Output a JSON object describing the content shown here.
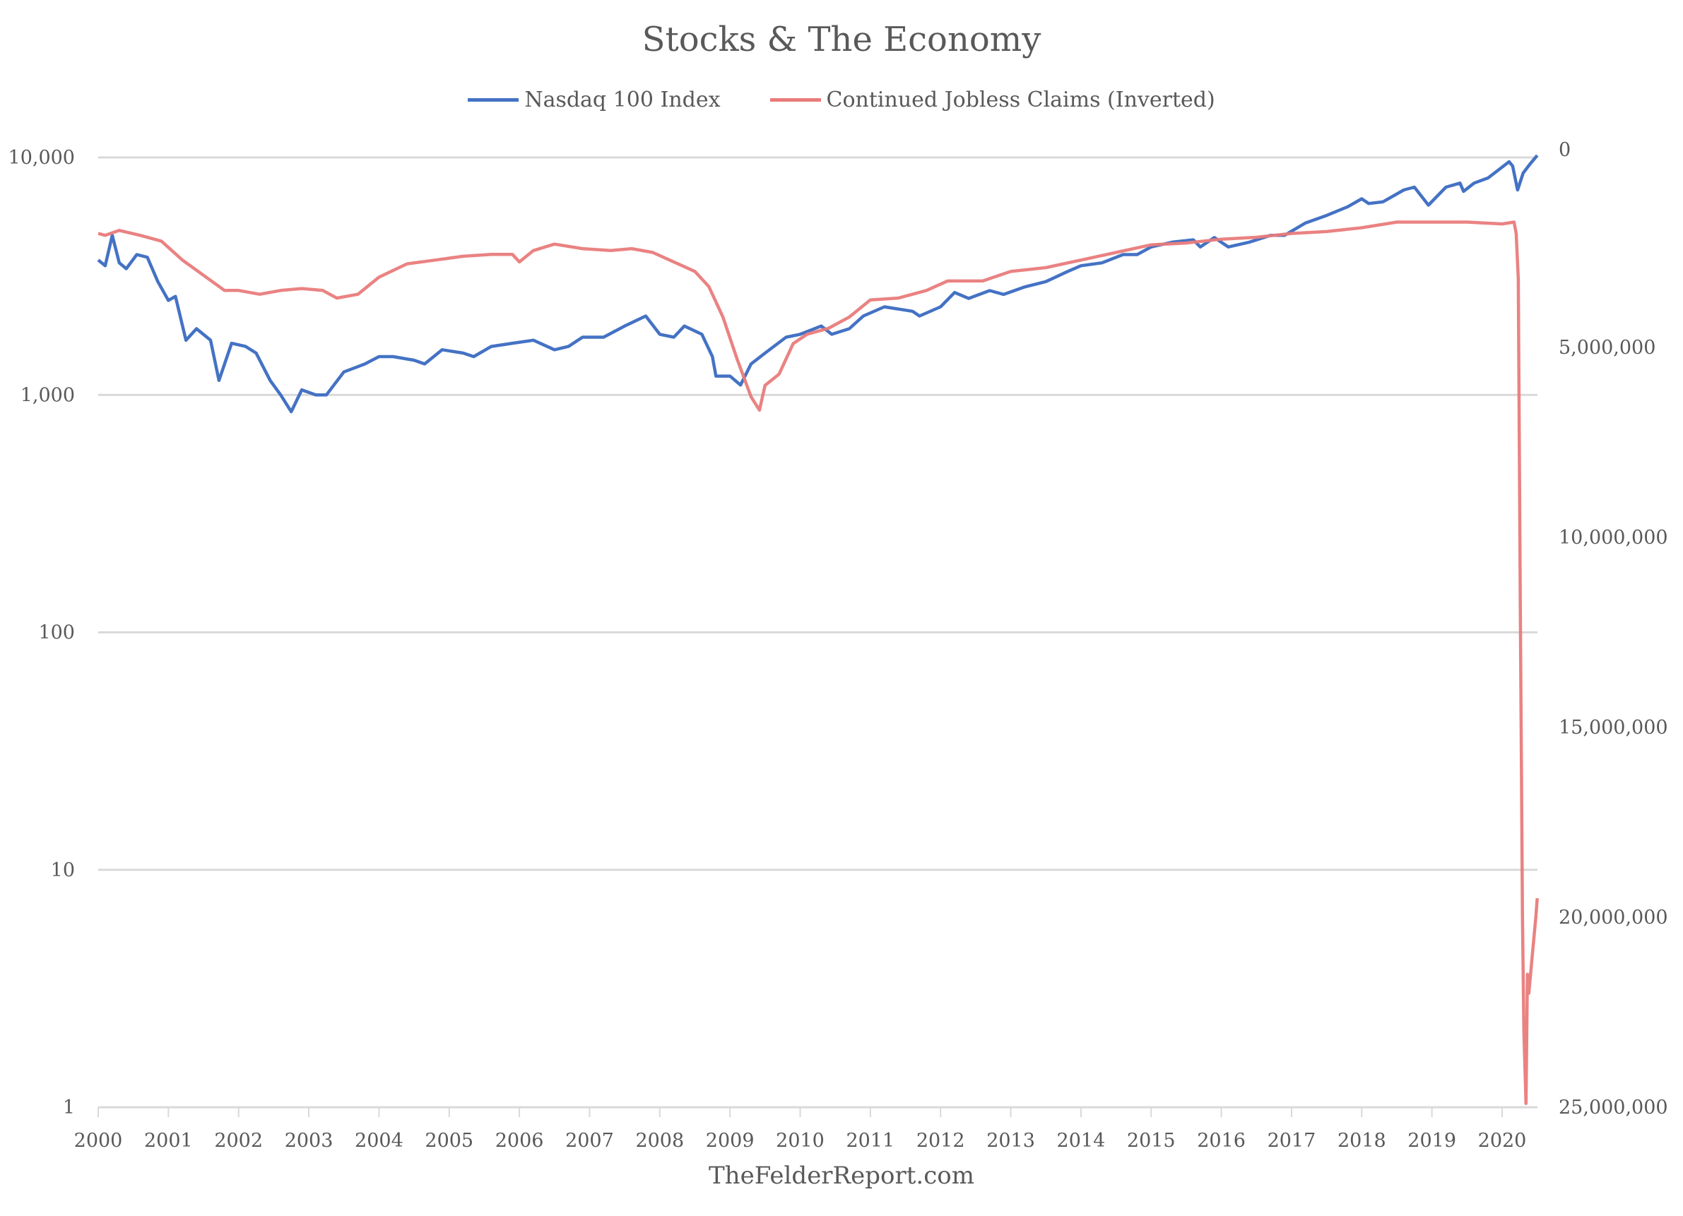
{
  "chart_data": {
    "type": "line",
    "title": "Stocks & The Economy",
    "footer": "TheFelderReport.com",
    "legend_position": "top",
    "grid": true,
    "x_ticks": [
      "2000",
      "2001",
      "2002",
      "2003",
      "2004",
      "2005",
      "2006",
      "2007",
      "2008",
      "2009",
      "2010",
      "2011",
      "2012",
      "2013",
      "2014",
      "2015",
      "2016",
      "2017",
      "2018",
      "2019",
      "2020"
    ],
    "xlim": [
      2000,
      2020.5
    ],
    "y_left": {
      "scale": "log",
      "range": [
        1,
        10000
      ],
      "ticks": [
        1,
        10,
        100,
        1000,
        10000
      ],
      "tick_labels": [
        "1",
        "10",
        "100",
        "1,000",
        "10,000"
      ]
    },
    "y_right": {
      "scale": "linear",
      "inverted": true,
      "range": [
        0,
        25000000
      ],
      "ticks": [
        0,
        5000000,
        10000000,
        15000000,
        20000000,
        25000000
      ],
      "tick_labels": [
        "0",
        "5,000,000",
        "10,000,000",
        "15,000,000",
        "20,000,000",
        "25,000,000"
      ]
    },
    "series": [
      {
        "name": "Nasdaq 100 Index",
        "axis": "left",
        "color": "#4472C4",
        "points": [
          [
            2000.0,
            3700
          ],
          [
            2000.1,
            3500
          ],
          [
            2000.2,
            4700
          ],
          [
            2000.3,
            3600
          ],
          [
            2000.4,
            3400
          ],
          [
            2000.55,
            3900
          ],
          [
            2000.7,
            3800
          ],
          [
            2000.85,
            3000
          ],
          [
            2001.0,
            2500
          ],
          [
            2001.1,
            2600
          ],
          [
            2001.25,
            1700
          ],
          [
            2001.4,
            1900
          ],
          [
            2001.6,
            1700
          ],
          [
            2001.72,
            1150
          ],
          [
            2001.9,
            1650
          ],
          [
            2002.1,
            1600
          ],
          [
            2002.25,
            1500
          ],
          [
            2002.45,
            1150
          ],
          [
            2002.6,
            1000
          ],
          [
            2002.75,
            850
          ],
          [
            2002.9,
            1050
          ],
          [
            2003.1,
            1000
          ],
          [
            2003.25,
            1000
          ],
          [
            2003.5,
            1250
          ],
          [
            2003.8,
            1350
          ],
          [
            2004.0,
            1450
          ],
          [
            2004.2,
            1450
          ],
          [
            2004.5,
            1400
          ],
          [
            2004.65,
            1350
          ],
          [
            2004.9,
            1550
          ],
          [
            2005.2,
            1500
          ],
          [
            2005.35,
            1450
          ],
          [
            2005.6,
            1600
          ],
          [
            2005.9,
            1650
          ],
          [
            2006.2,
            1700
          ],
          [
            2006.5,
            1550
          ],
          [
            2006.7,
            1600
          ],
          [
            2006.9,
            1750
          ],
          [
            2007.2,
            1750
          ],
          [
            2007.5,
            1950
          ],
          [
            2007.8,
            2150
          ],
          [
            2008.0,
            1800
          ],
          [
            2008.2,
            1750
          ],
          [
            2008.35,
            1950
          ],
          [
            2008.6,
            1800
          ],
          [
            2008.75,
            1450
          ],
          [
            2008.8,
            1200
          ],
          [
            2009.0,
            1200
          ],
          [
            2009.15,
            1100
          ],
          [
            2009.3,
            1350
          ],
          [
            2009.5,
            1500
          ],
          [
            2009.8,
            1750
          ],
          [
            2010.0,
            1800
          ],
          [
            2010.3,
            1950
          ],
          [
            2010.45,
            1800
          ],
          [
            2010.7,
            1900
          ],
          [
            2010.9,
            2150
          ],
          [
            2011.2,
            2350
          ],
          [
            2011.6,
            2250
          ],
          [
            2011.7,
            2150
          ],
          [
            2012.0,
            2350
          ],
          [
            2012.2,
            2700
          ],
          [
            2012.4,
            2550
          ],
          [
            2012.7,
            2750
          ],
          [
            2012.9,
            2650
          ],
          [
            2013.2,
            2850
          ],
          [
            2013.5,
            3000
          ],
          [
            2013.8,
            3300
          ],
          [
            2014.0,
            3500
          ],
          [
            2014.3,
            3600
          ],
          [
            2014.6,
            3900
          ],
          [
            2014.8,
            3900
          ],
          [
            2015.0,
            4200
          ],
          [
            2015.3,
            4400
          ],
          [
            2015.6,
            4500
          ],
          [
            2015.7,
            4200
          ],
          [
            2015.9,
            4600
          ],
          [
            2016.1,
            4200
          ],
          [
            2016.4,
            4400
          ],
          [
            2016.7,
            4700
          ],
          [
            2016.9,
            4700
          ],
          [
            2017.2,
            5300
          ],
          [
            2017.5,
            5700
          ],
          [
            2017.8,
            6200
          ],
          [
            2018.0,
            6700
          ],
          [
            2018.1,
            6400
          ],
          [
            2018.3,
            6500
          ],
          [
            2018.6,
            7300
          ],
          [
            2018.75,
            7500
          ],
          [
            2018.95,
            6300
          ],
          [
            2019.2,
            7500
          ],
          [
            2019.4,
            7800
          ],
          [
            2019.45,
            7200
          ],
          [
            2019.6,
            7800
          ],
          [
            2019.8,
            8200
          ],
          [
            2020.1,
            9600
          ],
          [
            2020.15,
            9200
          ],
          [
            2020.22,
            7300
          ],
          [
            2020.3,
            8600
          ],
          [
            2020.4,
            9400
          ],
          [
            2020.5,
            10200
          ]
        ]
      },
      {
        "name": "Continued Jobless Claims (Inverted)",
        "axis": "right",
        "color": "#E97B7B",
        "points": [
          [
            2000.0,
            2000000
          ],
          [
            2000.1,
            2050000
          ],
          [
            2000.3,
            1920000
          ],
          [
            2000.6,
            2050000
          ],
          [
            2000.9,
            2200000
          ],
          [
            2001.2,
            2700000
          ],
          [
            2001.5,
            3100000
          ],
          [
            2001.8,
            3500000
          ],
          [
            2002.0,
            3500000
          ],
          [
            2002.3,
            3600000
          ],
          [
            2002.6,
            3500000
          ],
          [
            2002.9,
            3450000
          ],
          [
            2003.2,
            3500000
          ],
          [
            2003.4,
            3700000
          ],
          [
            2003.7,
            3600000
          ],
          [
            2004.0,
            3150000
          ],
          [
            2004.4,
            2800000
          ],
          [
            2004.8,
            2700000
          ],
          [
            2005.2,
            2600000
          ],
          [
            2005.6,
            2550000
          ],
          [
            2005.9,
            2550000
          ],
          [
            2006.0,
            2750000
          ],
          [
            2006.2,
            2450000
          ],
          [
            2006.5,
            2280000
          ],
          [
            2006.9,
            2400000
          ],
          [
            2007.3,
            2450000
          ],
          [
            2007.6,
            2400000
          ],
          [
            2007.9,
            2500000
          ],
          [
            2008.2,
            2750000
          ],
          [
            2008.5,
            3000000
          ],
          [
            2008.7,
            3400000
          ],
          [
            2008.9,
            4200000
          ],
          [
            2009.1,
            5300000
          ],
          [
            2009.3,
            6300000
          ],
          [
            2009.42,
            6650000
          ],
          [
            2009.5,
            6000000
          ],
          [
            2009.7,
            5700000
          ],
          [
            2009.9,
            4900000
          ],
          [
            2010.1,
            4650000
          ],
          [
            2010.4,
            4500000
          ],
          [
            2010.7,
            4200000
          ],
          [
            2011.0,
            3750000
          ],
          [
            2011.4,
            3700000
          ],
          [
            2011.8,
            3500000
          ],
          [
            2012.1,
            3250000
          ],
          [
            2012.6,
            3250000
          ],
          [
            2013.0,
            3000000
          ],
          [
            2013.5,
            2900000
          ],
          [
            2014.0,
            2700000
          ],
          [
            2014.5,
            2500000
          ],
          [
            2015.0,
            2300000
          ],
          [
            2015.5,
            2250000
          ],
          [
            2016.0,
            2150000
          ],
          [
            2016.5,
            2100000
          ],
          [
            2017.0,
            2000000
          ],
          [
            2017.5,
            1950000
          ],
          [
            2018.0,
            1850000
          ],
          [
            2018.5,
            1700000
          ],
          [
            2019.0,
            1700000
          ],
          [
            2019.5,
            1700000
          ],
          [
            2020.0,
            1750000
          ],
          [
            2020.17,
            1700000
          ],
          [
            2020.2,
            2000000
          ],
          [
            2020.23,
            3200000
          ],
          [
            2020.26,
            12000000
          ],
          [
            2020.29,
            20000000
          ],
          [
            2020.31,
            23000000
          ],
          [
            2020.34,
            24900000
          ],
          [
            2020.36,
            21500000
          ],
          [
            2020.38,
            22000000
          ],
          [
            2020.43,
            21000000
          ],
          [
            2020.48,
            20000000
          ],
          [
            2020.5,
            19500000
          ]
        ]
      }
    ]
  }
}
